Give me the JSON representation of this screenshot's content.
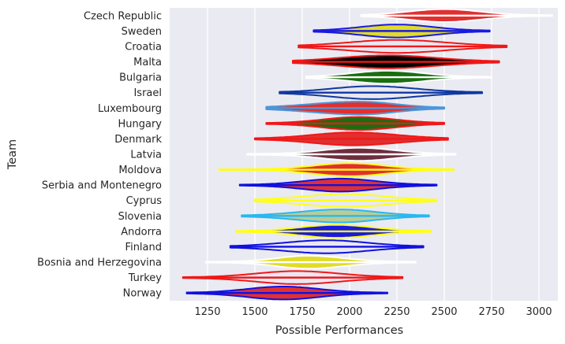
{
  "chart_data": {
    "type": "violin",
    "orientation": "horizontal",
    "xlabel": "Possible Performances",
    "ylabel": "Team",
    "xlim": [
      1050,
      3100
    ],
    "xticks": [
      1250,
      1500,
      1750,
      2000,
      2250,
      2500,
      2750,
      3000
    ],
    "grid": true,
    "plot_background": "#eaeaf2",
    "categories": [
      "Czech Republic",
      "Sweden",
      "Croatia",
      "Malta",
      "Bulgaria",
      "Israel",
      "Luxembourg",
      "Hungary",
      "Denmark",
      "Latvia",
      "Moldova",
      "Serbia and Montenegro",
      "Cyprus",
      "Slovenia",
      "Andorra",
      "Finland",
      "Bosnia and Herzegovina",
      "Turkey",
      "Norway"
    ],
    "series": [
      {
        "team": "Czech Republic",
        "min": 2060,
        "max": 3070,
        "q1": 2350,
        "median": 2500,
        "q3": 2650,
        "peak": 2500,
        "fill": "#e03030",
        "line": "#ffffff"
      },
      {
        "team": "Sweden",
        "min": 1810,
        "max": 2740,
        "q1": 2100,
        "median": 2250,
        "q3": 2400,
        "peak": 2250,
        "fill": "#e0dc28",
        "line": "#1a1ae0"
      },
      {
        "team": "Croatia",
        "min": 1730,
        "max": 2830,
        "q1": 2050,
        "median": 2250,
        "q3": 2450,
        "peak": 2250,
        "fill": "#e8e8f2",
        "line": "#f01818"
      },
      {
        "team": "Malta",
        "min": 1700,
        "max": 2790,
        "q1": 2000,
        "median": 2200,
        "q3": 2400,
        "peak": 2200,
        "fill": "#000000",
        "line": "#f01818"
      },
      {
        "team": "Bulgaria",
        "min": 1770,
        "max": 2750,
        "q1": 2050,
        "median": 2200,
        "q3": 2350,
        "peak": 2200,
        "fill": "#1a6e10",
        "line": "#ffffff"
      },
      {
        "team": "Israel",
        "min": 1630,
        "max": 2700,
        "q1": 1950,
        "median": 2120,
        "q3": 2300,
        "peak": 2120,
        "fill": "#e8e8f2",
        "line": "#1038a0"
      },
      {
        "team": "Luxembourg",
        "min": 1560,
        "max": 2500,
        "q1": 1850,
        "median": 2050,
        "q3": 2200,
        "peak": 2050,
        "fill": "#e03030",
        "line": "#4e96d8"
      },
      {
        "team": "Hungary",
        "min": 1560,
        "max": 2500,
        "q1": 1900,
        "median": 2050,
        "q3": 2200,
        "peak": 2050,
        "fill": "#1a6e10",
        "line": "#f01818"
      },
      {
        "team": "Denmark",
        "min": 1500,
        "max": 2520,
        "q1": 1850,
        "median": 2020,
        "q3": 2200,
        "peak": 2020,
        "fill": "#e03030",
        "line": "#f01818"
      },
      {
        "team": "Latvia",
        "min": 1460,
        "max": 2560,
        "q1": 1900,
        "median": 2050,
        "q3": 2200,
        "peak": 2050,
        "fill": "#6e2e3e",
        "line": "#ffffff"
      },
      {
        "team": "Moldova",
        "min": 1310,
        "max": 2550,
        "q1": 1850,
        "median": 2000,
        "q3": 2150,
        "peak": 2000,
        "fill": "#e03030",
        "line": "#ffff18"
      },
      {
        "team": "Serbia and Montenegro",
        "min": 1420,
        "max": 2460,
        "q1": 1800,
        "median": 1950,
        "q3": 2100,
        "peak": 1950,
        "fill": "#e03030",
        "line": "#1010e0"
      },
      {
        "team": "Cyprus",
        "min": 1500,
        "max": 2460,
        "q1": 1800,
        "median": 1980,
        "q3": 2150,
        "peak": 1980,
        "fill": "#e8e8f2",
        "line": "#ffff18"
      },
      {
        "team": "Slovenia",
        "min": 1430,
        "max": 2420,
        "q1": 1780,
        "median": 1950,
        "q3": 2100,
        "peak": 1950,
        "fill": "#b8cc98",
        "line": "#28b8f0"
      },
      {
        "team": "Andorra",
        "min": 1400,
        "max": 2430,
        "q1": 1780,
        "median": 1930,
        "q3": 2080,
        "peak": 1930,
        "fill": "#1a1ae0",
        "line": "#ffff18"
      },
      {
        "team": "Finland",
        "min": 1370,
        "max": 2390,
        "q1": 1700,
        "median": 1880,
        "q3": 2050,
        "peak": 1880,
        "fill": "#e8e8f2",
        "line": "#1010e0"
      },
      {
        "team": "Bosnia and Herzegovina",
        "min": 1240,
        "max": 2350,
        "q1": 1650,
        "median": 1780,
        "q3": 1930,
        "peak": 1780,
        "fill": "#e0dc28",
        "line": "#ffffff"
      },
      {
        "team": "Turkey",
        "min": 1120,
        "max": 2280,
        "q1": 1550,
        "median": 1720,
        "q3": 1900,
        "peak": 1720,
        "fill": "#e8e8f2",
        "line": "#f01818"
      },
      {
        "team": "Norway",
        "min": 1140,
        "max": 2200,
        "q1": 1500,
        "median": 1650,
        "q3": 1800,
        "peak": 1650,
        "fill": "#e03030",
        "line": "#1010e0"
      }
    ]
  }
}
